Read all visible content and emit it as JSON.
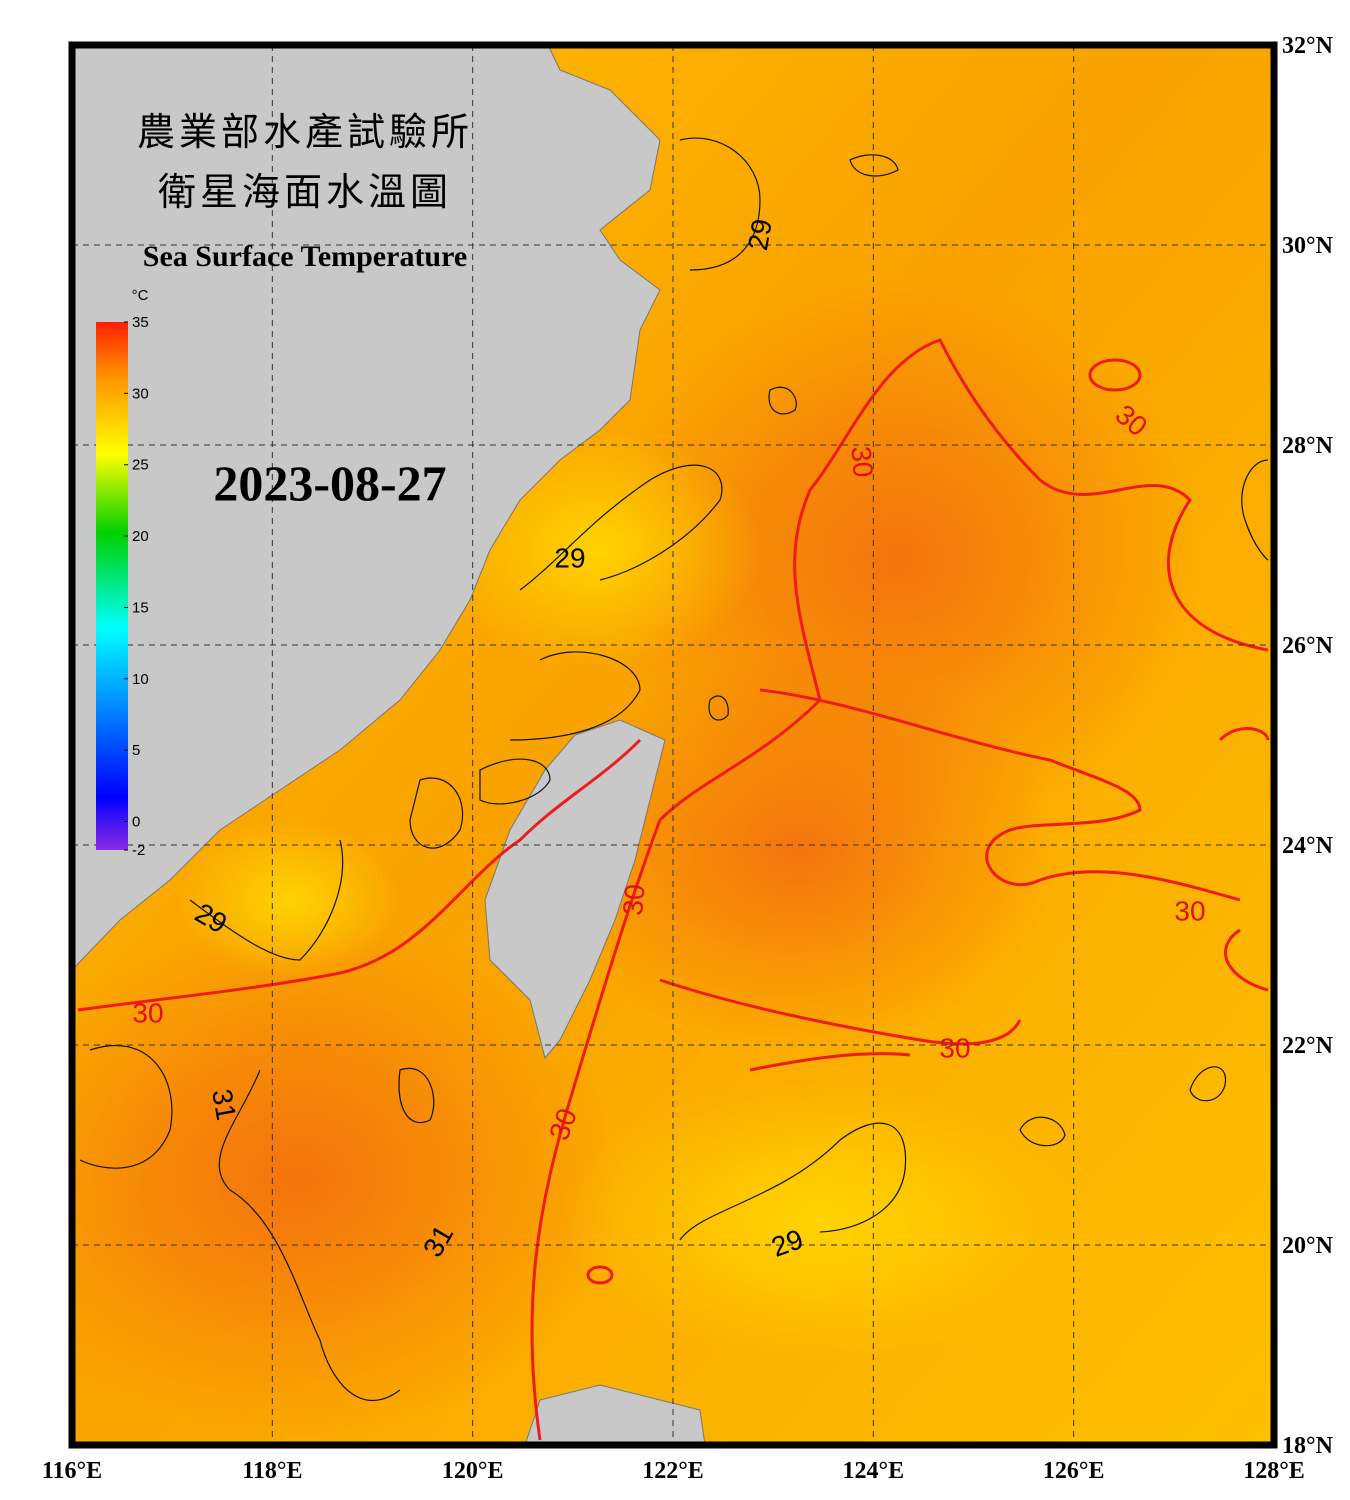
{
  "header": {
    "title_zh_1": "農業部水產試驗所",
    "title_zh_2": "衛星海面水溫圖",
    "title_en": "Sea Surface Temperature",
    "date": "2023-08-27"
  },
  "map": {
    "lonlim": [
      116,
      128
    ],
    "latlim": [
      18,
      32
    ],
    "lon_ticks": [
      {
        "value": 116,
        "label": "116°E"
      },
      {
        "value": 118,
        "label": "118°E"
      },
      {
        "value": 120,
        "label": "120°E"
      },
      {
        "value": 122,
        "label": "122°E"
      },
      {
        "value": 124,
        "label": "124°E"
      },
      {
        "value": 126,
        "label": "126°E"
      },
      {
        "value": 128,
        "label": "128°E"
      }
    ],
    "lat_ticks": [
      {
        "value": 18,
        "label": "18°N"
      },
      {
        "value": 20,
        "label": "20°N"
      },
      {
        "value": 22,
        "label": "22°N"
      },
      {
        "value": 24,
        "label": "24°N"
      },
      {
        "value": 26,
        "label": "26°N"
      },
      {
        "value": 28,
        "label": "28°N"
      },
      {
        "value": 30,
        "label": "30°N"
      },
      {
        "value": 32,
        "label": "32°N"
      }
    ]
  },
  "colorbar": {
    "unit": "°C",
    "range": [
      -2,
      35
    ],
    "ticks": [
      35,
      30,
      25,
      20,
      15,
      10,
      5,
      0,
      -2
    ]
  },
  "contour_labels": [
    29,
    29,
    30,
    30,
    29,
    30,
    31,
    30,
    30,
    30,
    30,
    31,
    29
  ]
}
